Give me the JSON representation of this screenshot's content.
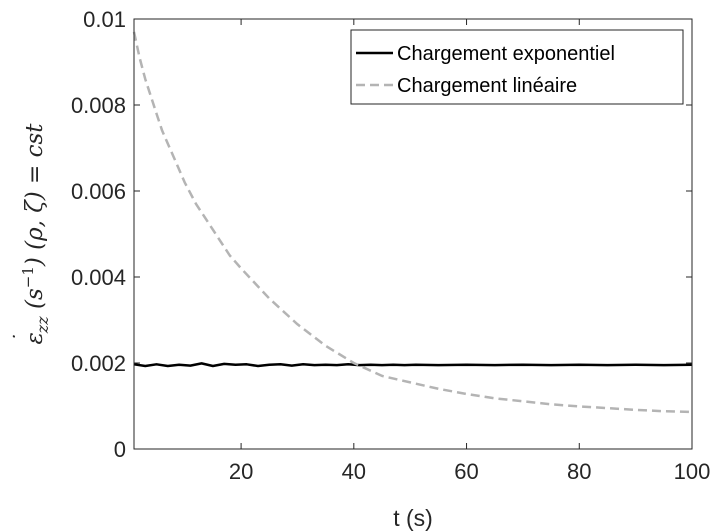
{
  "chart_data": {
    "type": "line",
    "xlabel": "t (s)",
    "ylabel_parts": {
      "eps": "ε",
      "dot": "˙",
      "sub": "zz",
      "rest": " (s",
      "sup": "−1",
      "tail": ") (ρ, ζ) = cst"
    },
    "xlim": [
      1,
      100
    ],
    "ylim": [
      0,
      0.01
    ],
    "xticks": [
      20,
      40,
      60,
      80,
      100
    ],
    "xtick_labels": [
      "20",
      "40",
      "60",
      "80",
      "100"
    ],
    "yticks": [
      0,
      0.002,
      0.004,
      0.006,
      0.008,
      0.01
    ],
    "ytick_labels": [
      "0",
      "0.002",
      "0.004",
      "0.006",
      "0.008",
      "0.01"
    ],
    "grid": false,
    "legend_position": "top-right",
    "series": [
      {
        "name": "Chargement exponentiel",
        "color": "#000000",
        "style": "solid",
        "x": [
          1,
          3,
          5,
          7,
          9,
          11,
          13,
          15,
          17,
          19,
          21,
          23,
          25,
          27,
          29,
          31,
          33,
          35,
          37,
          39,
          41,
          43,
          45,
          47,
          49,
          51,
          55,
          60,
          65,
          70,
          75,
          80,
          85,
          90,
          95,
          100
        ],
        "y": [
          0.00197,
          0.00193,
          0.00197,
          0.00193,
          0.00196,
          0.00194,
          0.00199,
          0.00193,
          0.00198,
          0.00196,
          0.00197,
          0.00193,
          0.00196,
          0.00197,
          0.00194,
          0.00197,
          0.00195,
          0.00196,
          0.00195,
          0.00197,
          0.00195,
          0.00196,
          0.00195,
          0.00196,
          0.00195,
          0.00196,
          0.00195,
          0.00196,
          0.00195,
          0.00196,
          0.00195,
          0.00196,
          0.00195,
          0.00196,
          0.00195,
          0.00196
        ]
      },
      {
        "name": "Chargement linéaire",
        "color": "#b4b4b4",
        "style": "dashed",
        "x": [
          1,
          2,
          3,
          4,
          5,
          6,
          8,
          10,
          12,
          15,
          18,
          20,
          25,
          30,
          35,
          40,
          45,
          50,
          55,
          60,
          65,
          70,
          75,
          80,
          85,
          90,
          95,
          100
        ],
        "y": [
          0.0097,
          0.0091,
          0.0086,
          0.0082,
          0.0078,
          0.0074,
          0.0068,
          0.0062,
          0.0057,
          0.0051,
          0.0045,
          0.0042,
          0.0035,
          0.0029,
          0.0024,
          0.002,
          0.0017,
          0.00155,
          0.0014,
          0.00128,
          0.00118,
          0.00111,
          0.00104,
          0.00099,
          0.00095,
          0.00091,
          0.00088,
          0.00086
        ]
      }
    ]
  }
}
